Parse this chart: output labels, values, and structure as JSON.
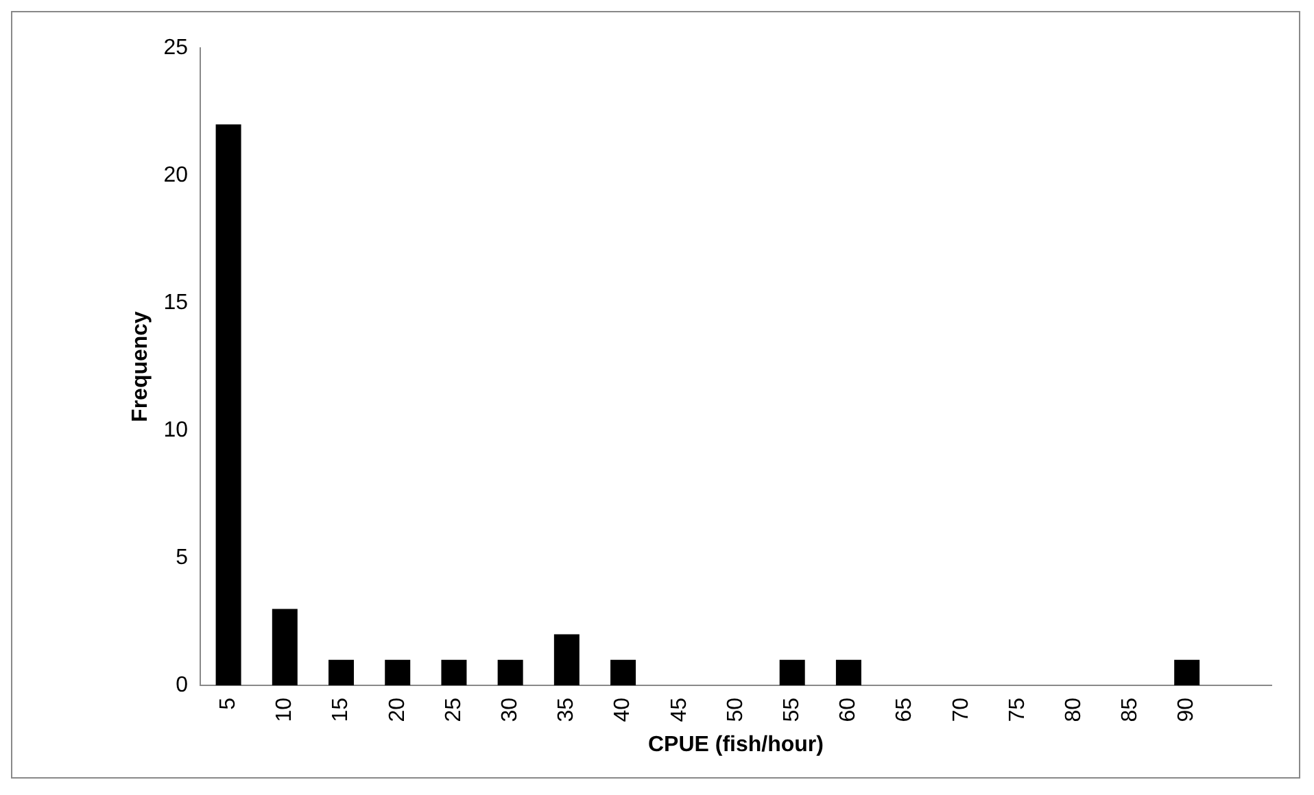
{
  "chart_data": {
    "type": "bar",
    "xlabel": "CPUE (fish/hour)",
    "ylabel": "Frequency",
    "categories": [
      "5",
      "10",
      "15",
      "20",
      "25",
      "30",
      "35",
      "40",
      "45",
      "50",
      "55",
      "60",
      "65",
      "70",
      "75",
      "80",
      "85",
      "90",
      null
    ],
    "values": [
      22,
      3,
      1,
      1,
      1,
      1,
      2,
      1,
      0,
      0,
      1,
      1,
      0,
      0,
      0,
      0,
      0,
      1,
      0
    ],
    "color": "#000000",
    "ylim": [
      0,
      25
    ],
    "yticks": [
      0,
      5,
      10,
      15,
      20,
      25
    ],
    "grid": false,
    "legend": false
  }
}
